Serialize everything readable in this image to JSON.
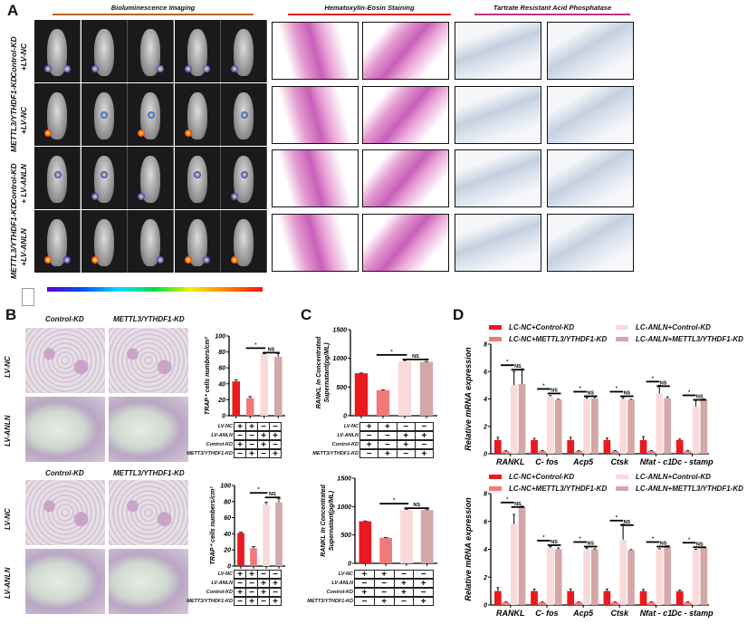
{
  "panels": {
    "A": "A",
    "B": "B",
    "C": "C",
    "D": "D"
  },
  "panel_a": {
    "headers": [
      {
        "label": "Bioluminescence Imaging",
        "color": "#b5651d"
      },
      {
        "label": "Hematoxylin-Eosin Staining",
        "color": "#e02020"
      },
      {
        "label": "Tartrate Resistant Acid Phosphatase",
        "color": "#c0308a"
      }
    ],
    "rows": [
      {
        "line1": "Control-KD",
        "line2": "+LV-NC"
      },
      {
        "line1": "METTL3/YTHDF1-KD",
        "line2": "+LV-NC"
      },
      {
        "line1": "Control-KD",
        "line2": "+ LV-ANLN"
      },
      {
        "line1": "METTL3/YTHDF1-KD",
        "line2": "+LV-ANLN"
      }
    ],
    "colorbar": [
      "#5a00c8",
      "#0050ff",
      "#00e0ff",
      "#00e040",
      "#f0f000",
      "#ff8000",
      "#ff1010"
    ]
  },
  "panel_b": {
    "blocks": [
      {
        "cols": [
          "Control-KD",
          "METTL3/YTHDF1-KD"
        ],
        "rows": [
          "LV-NC",
          "LV-ANLN"
        ]
      },
      {
        "cols": [
          "Control-KD",
          "METTL3/YTHDF1-KD"
        ],
        "rows": [
          "LV-NC",
          "LV-ANLN"
        ]
      }
    ]
  },
  "bar_colors": [
    "#e8191f",
    "#f07a7a",
    "#f9dada",
    "#d4a8a8"
  ],
  "chart_data": [
    {
      "id": "b1",
      "type": "bar",
      "ylabel": "TRAP⁺ cells numbers/cm²",
      "ylim": [
        0,
        100
      ],
      "yticks": [
        0,
        20,
        40,
        60,
        80,
        100
      ],
      "values": [
        43,
        22,
        77,
        74
      ],
      "errors": [
        2,
        2,
        1,
        4
      ],
      "sig": [
        "*",
        "NS"
      ],
      "table": [
        {
          "label": "LV-NC",
          "signs": [
            "+",
            "+",
            "−",
            "−"
          ]
        },
        {
          "label": "LV-ANLN",
          "signs": [
            "−",
            "−",
            "+",
            "+"
          ]
        },
        {
          "label": "Control-KD",
          "signs": [
            "+",
            "−",
            "+",
            "−"
          ]
        },
        {
          "label": "METT3/YTHDF1-KD",
          "signs": [
            "−",
            "+",
            "−",
            "+"
          ]
        }
      ]
    },
    {
      "id": "b2",
      "type": "bar",
      "ylabel": "TRAP⁺ cells numbers/cm²",
      "ylim": [
        0,
        100
      ],
      "yticks": [
        0,
        20,
        40,
        60,
        80,
        100
      ],
      "values": [
        41,
        22,
        76,
        79
      ],
      "errors": [
        1,
        2,
        3,
        5
      ],
      "sig": [
        "*",
        "NS"
      ],
      "table": [
        {
          "label": "LV-NC",
          "signs": [
            "+",
            "+",
            "−",
            "−"
          ]
        },
        {
          "label": "LV-ANLN",
          "signs": [
            "−",
            "−",
            "+",
            "+"
          ]
        },
        {
          "label": "Control-KD",
          "signs": [
            "+",
            "−",
            "+",
            "−"
          ]
        },
        {
          "label": "METT3/YTHDF1-KD",
          "signs": [
            "−",
            "+",
            "−",
            "+"
          ]
        }
      ]
    },
    {
      "id": "c1",
      "type": "bar",
      "ylabel": "RANKL In Concentrated",
      "ylabel2": "Supernatant(pg/ML)",
      "ylim": [
        0,
        1500
      ],
      "yticks": [
        0,
        500,
        1000,
        1500
      ],
      "values": [
        740,
        445,
        950,
        940
      ],
      "errors": [
        5,
        5,
        15,
        5
      ],
      "sig": [
        "*",
        "NS"
      ],
      "table": [
        {
          "label": "LV-NC",
          "signs": [
            "+",
            "+",
            "−",
            "−"
          ]
        },
        {
          "label": "LV-ANLN",
          "signs": [
            "−",
            "−",
            "+",
            "+"
          ]
        },
        {
          "label": "Control-KD",
          "signs": [
            "+",
            "−",
            "+",
            "−"
          ]
        },
        {
          "label": "METT3/YTHDF1-KD",
          "signs": [
            "−",
            "+",
            "−",
            "+"
          ]
        }
      ]
    },
    {
      "id": "c2",
      "type": "bar",
      "ylabel": "RANKL In Concentrated",
      "ylabel2": "Supernatant(pg/ML)",
      "ylim": [
        0,
        1500
      ],
      "yticks": [
        0,
        500,
        1000,
        1500
      ],
      "values": [
        740,
        450,
        945,
        940
      ],
      "errors": [
        5,
        5,
        10,
        5
      ],
      "sig": [
        "*",
        "NS"
      ],
      "table": [
        {
          "label": "LV-NC",
          "signs": [
            "+",
            "+",
            "−",
            "−"
          ]
        },
        {
          "label": "LV-ANLN",
          "signs": [
            "−",
            "−",
            "+",
            "+"
          ]
        },
        {
          "label": "Control-KD",
          "signs": [
            "+",
            "−",
            "+",
            "−"
          ]
        },
        {
          "label": "METT3/YTHDF1-KD",
          "signs": [
            "−",
            "+",
            "−",
            "+"
          ]
        }
      ]
    },
    {
      "id": "d1",
      "type": "bar",
      "ylabel": "Relative mRNA expression",
      "ylim": [
        0,
        8
      ],
      "yticks": [
        0,
        2,
        4,
        6,
        8
      ],
      "legend": "top",
      "categories": [
        "RANKL",
        "C- fos",
        "Acp5",
        "Ctsk",
        "Nfat - c1",
        "Dc - stamp"
      ],
      "sig": [
        "*",
        "NS"
      ],
      "series": [
        {
          "name": "LC-NC+Control-KD",
          "values": [
            1,
            1,
            1,
            1,
            1,
            1
          ],
          "errors": [
            0.2,
            0.12,
            0.2,
            0.15,
            0.25,
            0.08
          ]
        },
        {
          "name": "LC-NC+METTL3/YTHDF1-KD",
          "values": [
            0.2,
            0.2,
            0.2,
            0.2,
            0.2,
            0.2
          ],
          "errors": [
            0.03,
            0.03,
            0.03,
            0.03,
            0.03,
            0.03
          ]
        },
        {
          "name": "LC-ANLN+Control-KD",
          "values": [
            5,
            4.2,
            4,
            4,
            4.4,
            3.45
          ],
          "errors": [
            1,
            0.05,
            0.1,
            0.1,
            0.6,
            0.45
          ]
        },
        {
          "name": "LC-ANLN+METTL3/YTHDF1-KD",
          "values": [
            5.1,
            3.95,
            4.05,
            3.95,
            4.05,
            3.95
          ],
          "errors": [
            1.1,
            0.03,
            0.1,
            0.03,
            0.1,
            0.05
          ]
        }
      ]
    },
    {
      "id": "d2",
      "type": "bar",
      "ylabel": "Relative mRNA expression",
      "ylim": [
        0,
        8
      ],
      "yticks": [
        0,
        2,
        4,
        6,
        8
      ],
      "legend": "top",
      "categories": [
        "RANKL",
        "C- fos",
        "Acp5",
        "Ctsk",
        "Nfat - c1",
        "Dc - stamp"
      ],
      "sig": [
        "*",
        "NS"
      ],
      "series": [
        {
          "name": "LC-NC+Control-KD",
          "values": [
            1,
            1,
            1,
            1,
            1,
            1
          ],
          "errors": [
            0.25,
            0.15,
            0.15,
            0.15,
            0.12,
            0.08
          ]
        },
        {
          "name": "LC-NC+METTL3/YTHDF1-KD",
          "values": [
            0.2,
            0.2,
            0.2,
            0.2,
            0.2,
            0.2
          ],
          "errors": [
            0.03,
            0.03,
            0.03,
            0.03,
            0.03,
            0.03
          ]
        },
        {
          "name": "LC-ANLN+Control-KD",
          "values": [
            5.8,
            4.1,
            4,
            4.7,
            4,
            3.95
          ],
          "errors": [
            0.7,
            0.1,
            0.1,
            1.1,
            0.05,
            0.05
          ]
        },
        {
          "name": "LC-ANLN+METTL3/YTHDF1-KD",
          "values": [
            7,
            4,
            4,
            3.95,
            4.15,
            4.1
          ],
          "errors": [
            0.1,
            0.1,
            0.03,
            0.03,
            0.1,
            0.05
          ]
        }
      ]
    }
  ]
}
